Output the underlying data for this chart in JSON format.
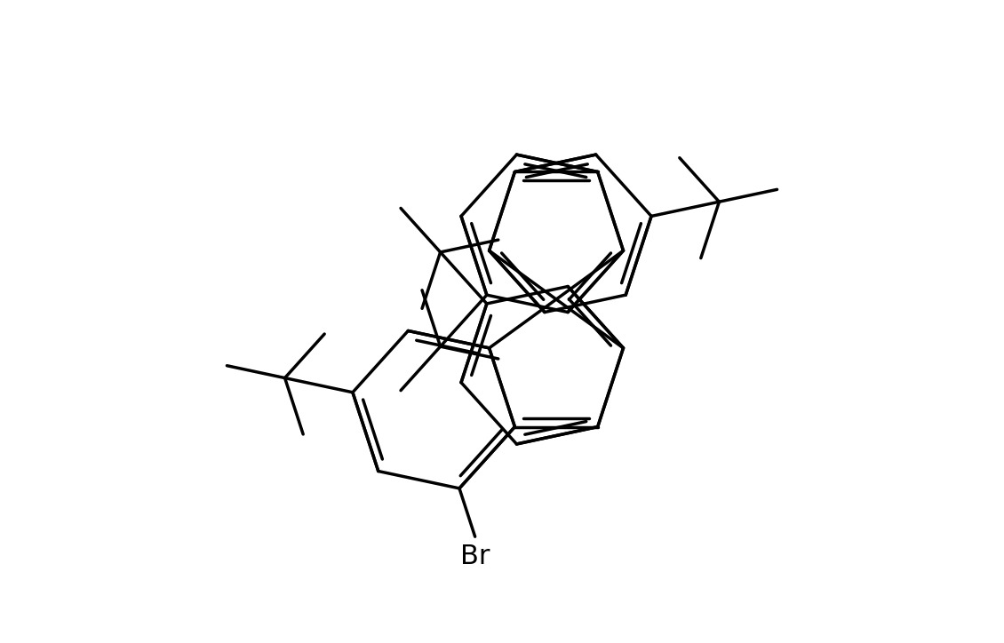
{
  "background_color": "#ffffff",
  "line_color": "#000000",
  "line_width": 2.5,
  "font_size": 22,
  "br_label": "Br",
  "figsize": [
    11.3,
    7.24
  ],
  "dpi": 100,
  "scale": 1.0
}
